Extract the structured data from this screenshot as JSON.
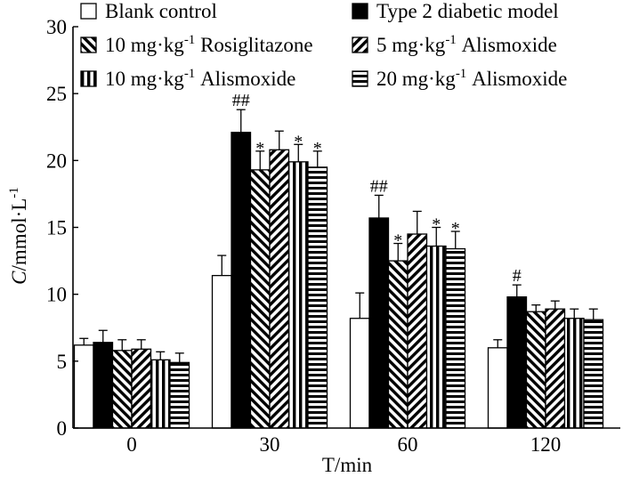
{
  "chart_data": {
    "type": "bar",
    "title": "",
    "xlabel": "T/min",
    "ylabel": "C/mmol·L",
    "ylabel_sup": "-1",
    "ylim": [
      0,
      30
    ],
    "yticks": [
      0,
      5,
      10,
      15,
      20,
      25,
      30
    ],
    "grid": false,
    "legend_position": "top",
    "categories": [
      "0",
      "30",
      "60",
      "120"
    ],
    "series": [
      {
        "name": "Blank control",
        "pattern": "white",
        "legend_text": "Blank control",
        "values": [
          6.2,
          11.4,
          8.2,
          6.0
        ],
        "errors": [
          0.5,
          1.5,
          1.9,
          0.6
        ],
        "marks": [
          "",
          "",
          "",
          ""
        ]
      },
      {
        "name": "Type 2 diabetic model",
        "pattern": "black",
        "legend_text": "Type 2 diabetic model",
        "values": [
          6.4,
          22.1,
          15.7,
          9.8
        ],
        "errors": [
          0.9,
          1.7,
          1.7,
          0.9
        ],
        "marks": [
          "",
          "##",
          "##",
          "#"
        ]
      },
      {
        "name": "10 mg·kg-1 Rosiglitazone",
        "pattern": "backslash",
        "legend_text": [
          "10 mg·kg",
          "-1",
          " Rosiglitazone"
        ],
        "values": [
          5.8,
          19.3,
          12.5,
          8.7
        ],
        "errors": [
          0.8,
          1.4,
          1.3,
          0.5
        ],
        "marks": [
          "",
          "*",
          "*",
          ""
        ]
      },
      {
        "name": "5 mg·kg-1 Alismoxide",
        "pattern": "slash",
        "legend_text": [
          "5 mg·kg",
          "-1",
          " Alismoxide"
        ],
        "values": [
          5.9,
          20.8,
          14.5,
          8.9
        ],
        "errors": [
          0.7,
          1.4,
          1.7,
          0.6
        ],
        "marks": [
          "",
          "",
          "",
          ""
        ]
      },
      {
        "name": "10 mg·kg-1 Alismoxide",
        "pattern": "vertical",
        "legend_text": [
          "10 mg·kg",
          "-1",
          " Alismoxide"
        ],
        "values": [
          5.1,
          19.9,
          13.6,
          8.2
        ],
        "errors": [
          0.6,
          1.3,
          1.4,
          0.7
        ],
        "marks": [
          "",
          "*",
          "*",
          ""
        ]
      },
      {
        "name": "20 mg·kg-1 Alismoxide",
        "pattern": "horizontal",
        "legend_text": [
          "20 mg·kg",
          "-1",
          " Alismoxide"
        ],
        "values": [
          4.9,
          19.5,
          13.4,
          8.1
        ],
        "errors": [
          0.7,
          1.2,
          1.3,
          0.8
        ],
        "marks": [
          "",
          "*",
          "*",
          ""
        ]
      }
    ]
  }
}
